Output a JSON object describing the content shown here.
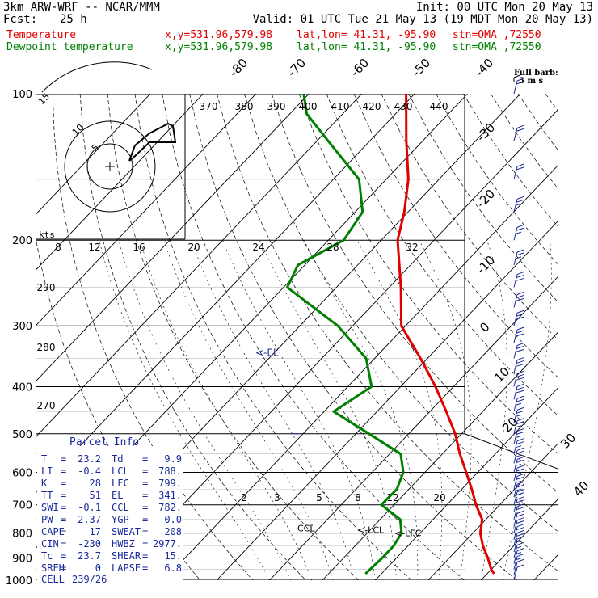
{
  "header": {
    "model": "3km ARW-WRF -- NCAR/MMM",
    "init": "Init: 00 UTC Mon 20 May 13",
    "fcst_label": "Fcst:",
    "fcst_value": "25 h",
    "valid": "Valid: 01 UTC Tue 21 May 13 (19 MDT Mon 20 May 13)",
    "temp_line": {
      "label": "Temperature",
      "xy": "x,y=531.96,579.98",
      "latlon": "lat,lon= 41.31, -95.90",
      "stn": "stn=OMA ,72550"
    },
    "dew_line": {
      "label": "Dewpoint temperature",
      "xy": "x,y=531.96,579.98",
      "latlon": "lat,lon= 41.31, -95.90",
      "stn": "stn=OMA ,72550"
    }
  },
  "full_barb": "Full barb:",
  "full_barb_units": "5 m s",
  "hodograph_units": "kts",
  "el_marker": "<-EL",
  "markers": {
    "ccl": "CCL",
    "lcl": "<-LCL",
    "lfc": "<-LFC"
  },
  "parcel_info": {
    "title": "Parcel Info",
    "rows": [
      {
        "k1": "T",
        "v1": "23.2",
        "k2": "Td",
        "v2": "9.9"
      },
      {
        "k1": "LI",
        "v1": "-0.4",
        "k2": "LCL",
        "v2": "788."
      },
      {
        "k1": "K",
        "v1": "28",
        "k2": "LFC",
        "v2": "799."
      },
      {
        "k1": "TT",
        "v1": "51",
        "k2": "EL",
        "v2": "341."
      },
      {
        "k1": "SWI",
        "v1": "-0.1",
        "k2": "CCL",
        "v2": "782."
      },
      {
        "k1": "PW",
        "v1": "2.37",
        "k2": "YGP",
        "v2": "0.0"
      },
      {
        "k1": "CAPE",
        "v1": "17",
        "k2": "SWEAT",
        "v2": "208"
      },
      {
        "k1": "CIN",
        "v1": "-230",
        "k2": "HWBZ",
        "v2": "2977."
      },
      {
        "k1": "Tc",
        "v1": "23.7",
        "k2": "SHEAR",
        "v2": "15."
      },
      {
        "k1": "SREH",
        "v1": "0",
        "k2": "LAPSE",
        "v2": "6.8"
      }
    ],
    "cell_label": "CELL",
    "cell_value": "239/26"
  },
  "colors": {
    "temperature": "#e00000",
    "dewpoint": "#008000",
    "barbs": "#1a2a9a",
    "grid": "#000000"
  },
  "chart_data": {
    "type": "line",
    "title": "",
    "xlabel": "",
    "ylabel": "",
    "y_scale": "log-pressure (hPa, inverted)",
    "pressure_ticks": [
      100,
      200,
      300,
      400,
      500,
      600,
      700,
      800,
      900,
      1000
    ],
    "temperature_ticks": [
      -80,
      -70,
      -60,
      -50,
      -40,
      -30,
      -20,
      -10,
      0,
      10,
      20,
      30,
      40
    ],
    "theta_ticks": [
      370,
      380,
      390,
      400,
      410,
      420,
      430,
      440,
      290,
      280,
      270
    ],
    "mixing_ratio_ticks": [
      8,
      12,
      16,
      20,
      24,
      28,
      32,
      2,
      3,
      5,
      8,
      12,
      20
    ],
    "series": [
      {
        "name": "Temperature",
        "points": [
          {
            "p": 970,
            "t": 31.3
          },
          {
            "p": 950,
            "t": 30.0
          },
          {
            "p": 900,
            "t": 27.3
          },
          {
            "p": 850,
            "t": 24.2
          },
          {
            "p": 800,
            "t": 21.4
          },
          {
            "p": 750,
            "t": 19.3
          },
          {
            "p": 700,
            "t": 15.5
          },
          {
            "p": 650,
            "t": 11.9
          },
          {
            "p": 600,
            "t": 7.8
          },
          {
            "p": 550,
            "t": 3.3
          },
          {
            "p": 500,
            "t": -1.2
          },
          {
            "p": 450,
            "t": -6.9
          },
          {
            "p": 400,
            "t": -13.4
          },
          {
            "p": 350,
            "t": -21.3
          },
          {
            "p": 300,
            "t": -30.8
          },
          {
            "p": 250,
            "t": -37.8
          },
          {
            "p": 200,
            "t": -46.9
          },
          {
            "p": 175,
            "t": -50.7
          },
          {
            "p": 150,
            "t": -55.8
          },
          {
            "p": 125,
            "t": -63.1
          },
          {
            "p": 100,
            "t": -71.6
          }
        ]
      },
      {
        "name": "Dewpoint temperature",
        "points": [
          {
            "p": 970,
            "t": 7.0
          },
          {
            "p": 900,
            "t": 7.3
          },
          {
            "p": 850,
            "t": 7.3
          },
          {
            "p": 800,
            "t": 6.5
          },
          {
            "p": 750,
            "t": 3.8
          },
          {
            "p": 700,
            "t": -2.4
          },
          {
            "p": 650,
            "t": -2.3
          },
          {
            "p": 600,
            "t": -4.1
          },
          {
            "p": 550,
            "t": -7.9
          },
          {
            "p": 500,
            "t": -17.5
          },
          {
            "p": 450,
            "t": -28.2
          },
          {
            "p": 400,
            "t": -25.5
          },
          {
            "p": 350,
            "t": -31.6
          },
          {
            "p": 300,
            "t": -42.8
          },
          {
            "p": 250,
            "t": -59.3
          },
          {
            "p": 225,
            "t": -61.3
          },
          {
            "p": 200,
            "t": -57.1
          },
          {
            "p": 175,
            "t": -58.6
          },
          {
            "p": 150,
            "t": -65.1
          },
          {
            "p": 125,
            "t": -77.9
          },
          {
            "p": 110,
            "t": -86.8
          },
          {
            "p": 100,
            "t": -91.0
          }
        ]
      }
    ],
    "wind_barbs": [
      {
        "p": 970,
        "dir": 200,
        "spd_ms": 6
      },
      {
        "p": 950,
        "dir": 210,
        "spd_ms": 7
      },
      {
        "p": 925,
        "dir": 220,
        "spd_ms": 8
      },
      {
        "p": 900,
        "dir": 225,
        "spd_ms": 8
      },
      {
        "p": 850,
        "dir": 230,
        "spd_ms": 9
      },
      {
        "p": 800,
        "dir": 235,
        "spd_ms": 10
      },
      {
        "p": 700,
        "dir": 240,
        "spd_ms": 11
      },
      {
        "p": 600,
        "dir": 245,
        "spd_ms": 12
      },
      {
        "p": 500,
        "dir": 250,
        "spd_ms": 13
      },
      {
        "p": 400,
        "dir": 255,
        "spd_ms": 14
      },
      {
        "p": 300,
        "dir": 255,
        "spd_ms": 15
      },
      {
        "p": 250,
        "dir": 250,
        "spd_ms": 14
      },
      {
        "p": 200,
        "dir": 250,
        "spd_ms": 13
      },
      {
        "p": 150,
        "dir": 245,
        "spd_ms": 11
      },
      {
        "p": 100,
        "dir": 240,
        "spd_ms": 8
      }
    ]
  }
}
